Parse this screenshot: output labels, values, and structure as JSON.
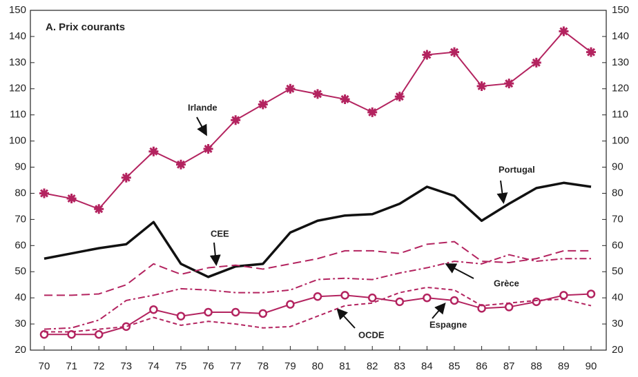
{
  "chart_data": {
    "type": "line",
    "title": "A.  Prix courants",
    "categories": [
      "70",
      "71",
      "72",
      "73",
      "74",
      "75",
      "76",
      "77",
      "78",
      "79",
      "80",
      "81",
      "82",
      "83",
      "84",
      "85",
      "86",
      "87",
      "88",
      "89",
      "90"
    ],
    "ylim": [
      20,
      150
    ],
    "yticks": [
      20,
      30,
      40,
      50,
      60,
      70,
      80,
      90,
      100,
      110,
      120,
      130,
      140,
      150
    ],
    "y2lim": [
      20,
      150
    ],
    "y2ticks": [
      20,
      30,
      40,
      50,
      60,
      70,
      80,
      90,
      100,
      110,
      120,
      130,
      140,
      150
    ],
    "series": [
      {
        "name": "Irlande",
        "color": "#b3235f",
        "style": "solid",
        "marker": "star",
        "values": [
          80,
          78,
          74,
          86,
          96,
          91,
          97,
          108,
          114,
          120,
          118,
          116,
          111,
          117,
          133,
          134,
          121,
          122,
          130,
          142,
          134
        ]
      },
      {
        "name": "Portugal",
        "color": "#111111",
        "style": "thick",
        "marker": "none",
        "values": [
          55,
          57,
          59,
          60.5,
          69,
          53,
          48,
          52,
          53,
          65,
          69.5,
          71.5,
          72,
          76,
          82.5,
          79,
          69.5,
          76,
          82,
          84,
          82.5
        ]
      },
      {
        "name": "CEE",
        "color": "#b3235f",
        "style": "dashed",
        "marker": "none",
        "values": [
          41,
          41,
          41.5,
          45,
          53,
          49,
          51.5,
          52.5,
          51,
          53,
          55,
          58,
          58,
          57,
          60.5,
          61.5,
          54,
          53.5,
          55,
          58,
          58
        ]
      },
      {
        "name": "Grèce",
        "color": "#b3235f",
        "style": "dashdot",
        "marker": "none",
        "values": [
          28,
          28.5,
          31.5,
          39,
          41,
          43.5,
          43,
          42,
          42,
          43,
          47,
          47.5,
          47,
          49.5,
          51.5,
          54,
          53,
          56.5,
          54,
          55,
          55
        ]
      },
      {
        "name": "OCDE",
        "color": "#b3235f",
        "style": "solid",
        "marker": "circle",
        "values": [
          26,
          26,
          26,
          29,
          35.5,
          33,
          34.5,
          34.5,
          34,
          37.5,
          40.5,
          41,
          40,
          38.5,
          40,
          39,
          36,
          36.5,
          38.5,
          41,
          41.5
        ]
      },
      {
        "name": "Espagne",
        "color": "#b3235f",
        "style": "shortdash",
        "marker": "none",
        "values": [
          27,
          27,
          28,
          29,
          32.5,
          29.5,
          31,
          30,
          28.5,
          29,
          33,
          37,
          38,
          42,
          44,
          43,
          37,
          38,
          39,
          39.5,
          37
        ]
      }
    ]
  }
}
